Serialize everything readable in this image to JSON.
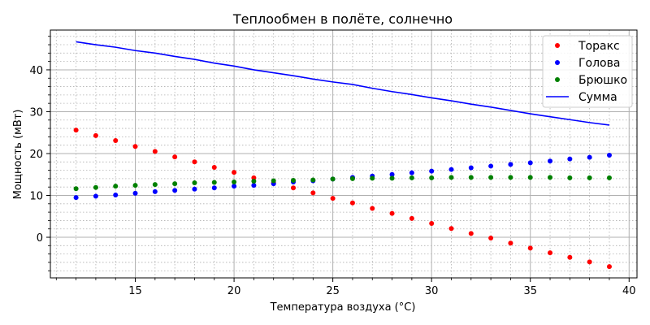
{
  "chart_data": {
    "type": "scatter",
    "title": "Теплообмен в полёте, солнечно",
    "xlabel": "Температура воздуха (°C)",
    "ylabel": "Мощность (мВт)",
    "xlim": [
      10.7,
      40.4
    ],
    "ylim": [
      -9.7,
      49.5
    ],
    "xticks": [
      15,
      20,
      25,
      30,
      35,
      40
    ],
    "yticks": [
      0,
      10,
      20,
      30,
      40
    ],
    "x_minor_step": 1,
    "y_minor_step": 2,
    "grid": true,
    "legend_position": "upper right",
    "x": [
      12,
      13,
      14,
      15,
      16,
      17,
      18,
      19,
      20,
      21,
      22,
      23,
      24,
      25,
      26,
      27,
      28,
      29,
      30,
      31,
      32,
      33,
      34,
      35,
      36,
      37,
      38,
      39
    ],
    "series": [
      {
        "name": "Торакс",
        "kind": "points",
        "color": "#ff0000",
        "values": [
          25.6,
          24.3,
          23.1,
          21.7,
          20.5,
          19.2,
          18.0,
          16.7,
          15.5,
          14.2,
          13.0,
          11.8,
          10.6,
          9.3,
          8.2,
          6.9,
          5.7,
          4.5,
          3.3,
          2.1,
          0.9,
          -0.2,
          -1.4,
          -2.6,
          -3.7,
          -4.8,
          -5.9,
          -7.0
        ]
      },
      {
        "name": "Голова",
        "kind": "points",
        "color": "#0000ff",
        "values": [
          9.5,
          9.8,
          10.1,
          10.5,
          10.9,
          11.2,
          11.5,
          11.8,
          12.2,
          12.4,
          12.8,
          13.2,
          13.5,
          13.9,
          14.3,
          14.6,
          15.0,
          15.4,
          15.8,
          16.2,
          16.6,
          17.0,
          17.4,
          17.8,
          18.2,
          18.7,
          19.1,
          19.6
        ]
      },
      {
        "name": "Брюшко",
        "kind": "points",
        "color": "#008000",
        "values": [
          11.6,
          11.9,
          12.2,
          12.4,
          12.6,
          12.8,
          13.0,
          13.1,
          13.2,
          13.4,
          13.5,
          13.6,
          13.7,
          13.9,
          14.0,
          14.1,
          14.1,
          14.2,
          14.2,
          14.3,
          14.3,
          14.3,
          14.3,
          14.3,
          14.3,
          14.2,
          14.2,
          14.2
        ]
      },
      {
        "name": "Сумма",
        "kind": "line",
        "color": "#0000ff",
        "values": [
          46.7,
          46.0,
          45.4,
          44.6,
          44.0,
          43.2,
          42.5,
          41.6,
          40.9,
          40.0,
          39.3,
          38.6,
          37.8,
          37.1,
          36.5,
          35.6,
          34.8,
          34.1,
          33.3,
          32.6,
          31.8,
          31.1,
          30.3,
          29.5,
          28.8,
          28.1,
          27.4,
          26.8
        ]
      }
    ]
  }
}
